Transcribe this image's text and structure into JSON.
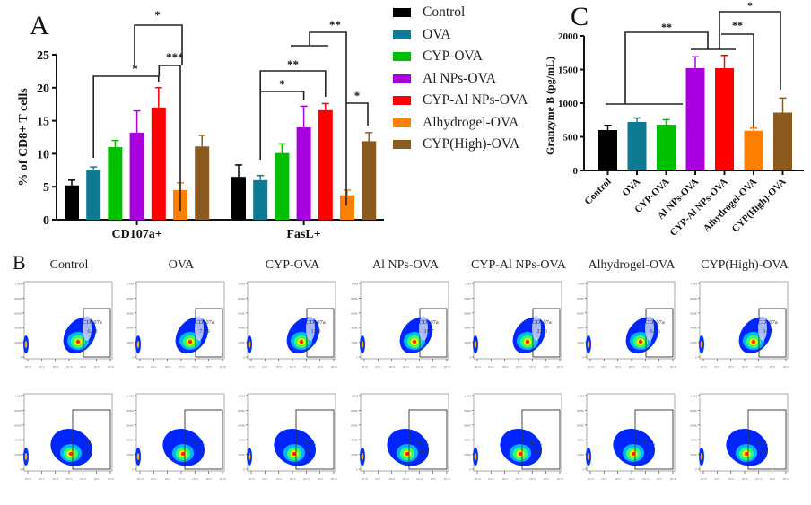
{
  "panels": {
    "a": "A",
    "b": "B",
    "c": "C"
  },
  "groups": [
    {
      "name": "Control",
      "color": "#000000"
    },
    {
      "name": "OVA",
      "color": "#0e7b93"
    },
    {
      "name": "CYP-OVA",
      "color": "#00c000"
    },
    {
      "name": "Al NPs-OVA",
      "color": "#a900e0"
    },
    {
      "name": "CYP-Al NPs-OVA",
      "color": "#ff0000"
    },
    {
      "name": "Alhydrogel-OVA",
      "color": "#ff8000"
    },
    {
      "name": "CYP(High)-OVA",
      "color": "#8b5a1e"
    }
  ],
  "chart_data": [
    {
      "id": "A",
      "type": "bar",
      "title": "",
      "ylabel": "% of CD8+ T cells",
      "xlabel": "",
      "ylim": [
        0,
        25
      ],
      "yticks": [
        0,
        5,
        10,
        15,
        20,
        25
      ],
      "categories": [
        "CD107a+",
        "FasL+"
      ],
      "series": [
        {
          "name": "Control",
          "values": [
            5.2,
            6.5
          ],
          "errors": [
            0.8,
            1.8
          ]
        },
        {
          "name": "OVA",
          "values": [
            7.6,
            6.0
          ],
          "errors": [
            0.4,
            0.7
          ]
        },
        {
          "name": "CYP-OVA",
          "values": [
            11.0,
            10.1
          ],
          "errors": [
            1.0,
            1.4
          ]
        },
        {
          "name": "Al NPs-OVA",
          "values": [
            13.2,
            14.0
          ],
          "errors": [
            3.3,
            3.2
          ]
        },
        {
          "name": "CYP-Al NPs-OVA",
          "values": [
            17.0,
            16.6
          ],
          "errors": [
            3.0,
            1.0
          ]
        },
        {
          "name": "Alhydrogel-OVA",
          "values": [
            4.5,
            3.7
          ],
          "errors": [
            1.1,
            0.8
          ]
        },
        {
          "name": "CYP(High)-OVA",
          "values": [
            11.1,
            11.9
          ],
          "errors": [
            1.7,
            1.3
          ]
        }
      ],
      "significance": [
        {
          "from": "OVA",
          "to": "CYP-Al NPs-OVA",
          "category": "CD107a+",
          "label": "*"
        },
        {
          "from": "CYP-Al NPs-OVA",
          "to": "Alhydrogel-OVA",
          "category": "CD107a+",
          "label": "***"
        },
        {
          "from": "bracket",
          "to": "Alhydrogel-OVA",
          "category": "CD107a+",
          "label": "*"
        },
        {
          "from": "OVA",
          "to": "Al NPs-OVA",
          "category": "FasL+",
          "label": "*"
        },
        {
          "from": "OVA",
          "to": "CYP-Al NPs-OVA",
          "category": "FasL+",
          "label": "**"
        },
        {
          "from": "bracket",
          "to": "Alhydrogel-OVA",
          "category": "FasL+",
          "label": "**"
        },
        {
          "from": "Alhydrogel-OVA",
          "to": "CYP(High)-OVA",
          "category": "FasL+",
          "label": "*"
        }
      ]
    },
    {
      "id": "C",
      "type": "bar",
      "title": "",
      "ylabel": "Granzyme B (pg/mL)",
      "xlabel": "",
      "ylim": [
        0,
        2000
      ],
      "yticks": [
        0,
        500,
        1000,
        1500,
        2000
      ],
      "categories": [
        "Control",
        "OVA",
        "CYP-OVA",
        "Al NPs-OVA",
        "CYP-Al NPs-OVA",
        "Alhydrogel-OVA",
        "CYP(High)-OVA"
      ],
      "values": [
        600,
        720,
        680,
        1520,
        1520,
        590,
        860
      ],
      "errors": [
        70,
        60,
        75,
        170,
        190,
        40,
        215
      ],
      "significance": [
        {
          "from": "Control–CYP-OVA",
          "to": "Al NPs-OVA–CYP-Al NPs-OVA",
          "label": "**"
        },
        {
          "from": "Al NPs-OVA–CYP-Al NPs-OVA",
          "to": "Alhydrogel-OVA",
          "label": "**"
        },
        {
          "from": "Al NPs-OVA–CYP-Al NPs-OVA",
          "to": "CYP(High)-OVA",
          "label": "*"
        }
      ]
    }
  ],
  "flow": {
    "groups": [
      "Control",
      "OVA",
      "CYP-OVA",
      "Al NPs-OVA",
      "CYP-Al NPs-OVA",
      "Alhydrogel-OVA",
      "CYP(High)-OVA"
    ],
    "row1": {
      "gate_label": "CD107a",
      "values": [
        "6.32",
        "7.59",
        "11.9",
        "19.7",
        "23.0",
        "6.76",
        "14.2"
      ]
    },
    "row2": {
      "gate_label": "FasL",
      "values": [
        "6.76",
        "7.53",
        "12.6",
        "20.3",
        "18.4",
        "5.30",
        "14.4"
      ]
    },
    "y_ticks": [
      "0",
      "200K",
      "400K",
      "600K",
      "800K",
      "1.0M"
    ],
    "x_ticks": [
      "10^0",
      "10^1",
      "10^2",
      "10^3",
      "10^4",
      "10^5",
      "10^6"
    ]
  }
}
